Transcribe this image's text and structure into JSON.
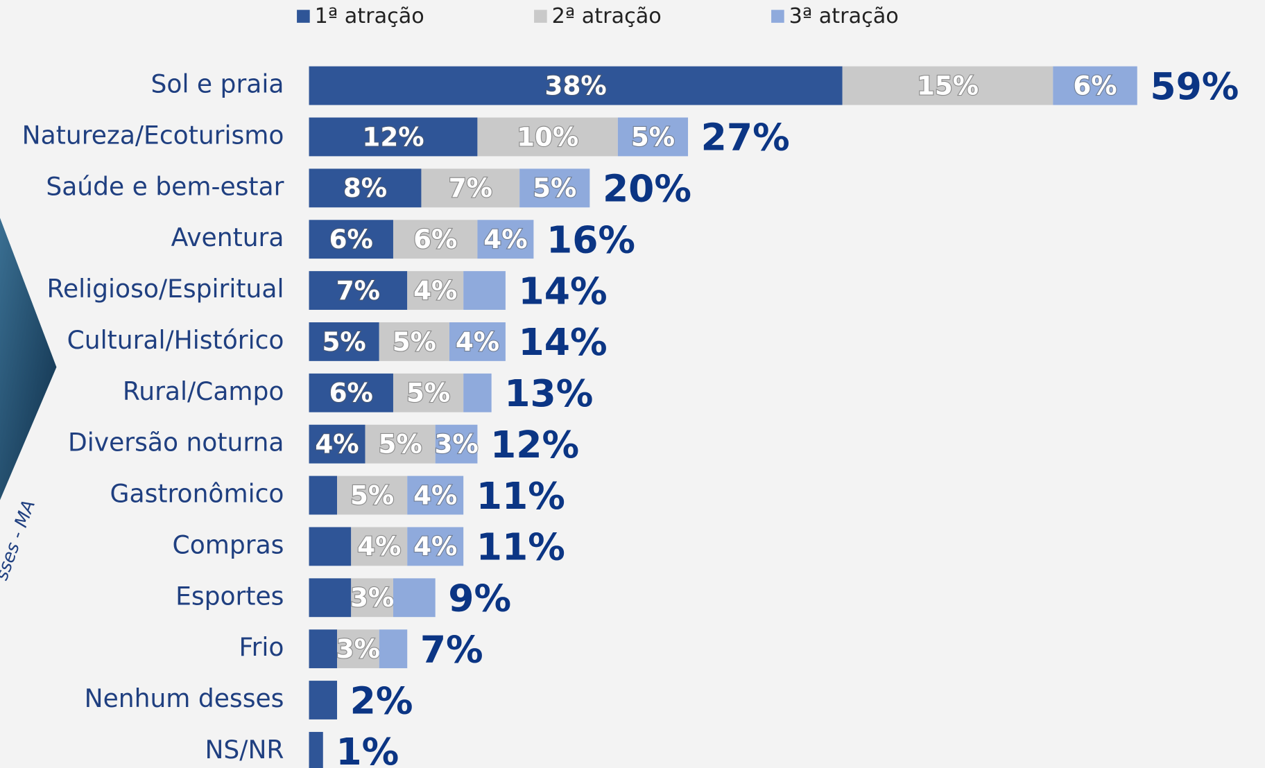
{
  "chart_data": {
    "type": "stacked-bar-horizontal",
    "categories": [
      "Sol e praia",
      "Natureza/Ecoturismo",
      "Saúde e bem-estar",
      "Aventura",
      "Religioso/Espiritual",
      "Cultural/Histórico",
      "Rural/Campo",
      "Diversão noturna",
      "Gastronômico",
      "Compras",
      "Esportes",
      "Frio",
      "Nenhum desses",
      "NS/NR"
    ],
    "series": [
      {
        "name": "1ª atração",
        "color": "#2f5597",
        "values": [
          38,
          12,
          8,
          6,
          7,
          5,
          6,
          4,
          2,
          3,
          3,
          2,
          2,
          1
        ],
        "value_labels": [
          "38%",
          "12%",
          "8%",
          "6%",
          "7%",
          "5%",
          "6%",
          "4%",
          null,
          null,
          null,
          null,
          null,
          null
        ]
      },
      {
        "name": "2ª atração",
        "color": "#c9c9c9",
        "values": [
          15,
          10,
          7,
          6,
          4,
          5,
          5,
          5,
          5,
          4,
          3,
          3,
          0,
          0
        ],
        "value_labels": [
          "15%",
          "10%",
          "7%",
          "6%",
          "4%",
          "5%",
          "5%",
          "5%",
          "5%",
          "4%",
          "3%",
          "3%",
          null,
          null
        ]
      },
      {
        "name": "3ª atração",
        "color": "#8faadc",
        "values": [
          6,
          5,
          5,
          4,
          3,
          4,
          2,
          3,
          4,
          4,
          3,
          2,
          0,
          0
        ],
        "value_labels": [
          "6%",
          "5%",
          "5%",
          "4%",
          null,
          "4%",
          null,
          "3%",
          "4%",
          "4%",
          null,
          null,
          null,
          null
        ]
      }
    ],
    "totals": {
      "values": [
        59,
        27,
        20,
        16,
        14,
        14,
        13,
        12,
        11,
        11,
        9,
        7,
        2,
        1
      ],
      "value_labels": [
        "59%",
        "27%",
        "20%",
        "16%",
        "14%",
        "14%",
        "13%",
        "12%",
        "11%",
        "11%",
        "9%",
        "7%",
        "2%",
        "1%"
      ]
    },
    "side_note": "sses - MA"
  }
}
